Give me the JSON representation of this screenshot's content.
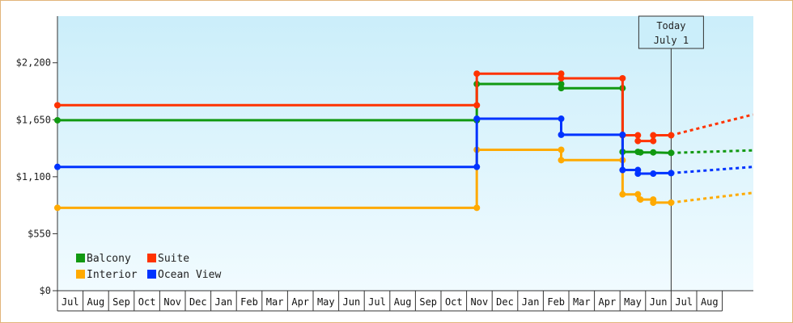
{
  "chart_data": {
    "type": "line",
    "title": "",
    "xlabel": "",
    "ylabel": "",
    "ylim": [
      0,
      2650
    ],
    "y_ticks": [
      "$0",
      "$550",
      "$1,100",
      "$1,650",
      "$2,200"
    ],
    "y_tick_values": [
      0,
      550,
      1100,
      1650,
      2200
    ],
    "months": [
      "Jul",
      "Aug",
      "Sep",
      "Oct",
      "Nov",
      "Dec",
      "Jan",
      "Feb",
      "Mar",
      "Apr",
      "May",
      "Jun",
      "Jul",
      "Aug",
      "Sep",
      "Oct",
      "Nov",
      "Dec",
      "Jan",
      "Feb",
      "Mar",
      "Apr",
      "May",
      "Jun",
      "Jul",
      "Aug"
    ],
    "x_unit": "months since start of first Jul",
    "xlim": [
      0,
      27.2
    ],
    "today": {
      "line1": "Today",
      "line2": "July 1",
      "x": 24.0
    },
    "grid": false,
    "legend_position": "bottom-left",
    "series": [
      {
        "name": "Balcony",
        "color": "#119911",
        "points": [
          [
            0,
            1645
          ],
          [
            16.4,
            1645
          ],
          [
            16.4,
            1995
          ],
          [
            19.7,
            1995
          ],
          [
            19.7,
            1955
          ],
          [
            22.1,
            1955
          ],
          [
            22.1,
            1340
          ],
          [
            22.7,
            1340
          ],
          [
            22.7,
            1335
          ],
          [
            23.3,
            1335
          ],
          [
            23.3,
            1335
          ],
          [
            24.0,
            1330
          ]
        ],
        "markers": [
          [
            0,
            1645
          ],
          [
            16.4,
            1645
          ],
          [
            16.4,
            1995
          ],
          [
            19.7,
            1995
          ],
          [
            19.7,
            1955
          ],
          [
            22.1,
            1955
          ],
          [
            22.1,
            1340
          ],
          [
            22.7,
            1340
          ],
          [
            22.8,
            1335
          ],
          [
            23.3,
            1335
          ],
          [
            24.0,
            1330
          ]
        ],
        "forecast": [
          [
            24.0,
            1330
          ],
          [
            27.2,
            1355
          ]
        ]
      },
      {
        "name": "Suite",
        "color": "#ff3300",
        "points": [
          [
            0,
            1790
          ],
          [
            16.4,
            1790
          ],
          [
            16.4,
            2095
          ],
          [
            19.7,
            2095
          ],
          [
            19.7,
            2050
          ],
          [
            22.1,
            2050
          ],
          [
            22.1,
            1500
          ],
          [
            22.7,
            1500
          ],
          [
            22.7,
            1445
          ],
          [
            23.3,
            1445
          ],
          [
            23.3,
            1500
          ],
          [
            24.0,
            1500
          ]
        ],
        "markers": [
          [
            0,
            1790
          ],
          [
            16.4,
            1790
          ],
          [
            16.4,
            2095
          ],
          [
            19.7,
            2095
          ],
          [
            19.7,
            2050
          ],
          [
            22.1,
            2050
          ],
          [
            22.1,
            1500
          ],
          [
            22.7,
            1500
          ],
          [
            22.7,
            1445
          ],
          [
            23.3,
            1445
          ],
          [
            23.3,
            1500
          ],
          [
            24.0,
            1500
          ]
        ],
        "forecast": [
          [
            24.0,
            1500
          ],
          [
            27.2,
            1700
          ]
        ]
      },
      {
        "name": "Interior",
        "color": "#ffaa00",
        "points": [
          [
            0,
            800
          ],
          [
            16.4,
            800
          ],
          [
            16.4,
            1360
          ],
          [
            19.7,
            1360
          ],
          [
            19.7,
            1260
          ],
          [
            22.1,
            1260
          ],
          [
            22.1,
            930
          ],
          [
            22.7,
            930
          ],
          [
            22.7,
            880
          ],
          [
            23.3,
            880
          ],
          [
            23.3,
            850
          ],
          [
            24.0,
            850
          ]
        ],
        "markers": [
          [
            0,
            800
          ],
          [
            16.4,
            800
          ],
          [
            16.4,
            1360
          ],
          [
            19.7,
            1360
          ],
          [
            19.7,
            1260
          ],
          [
            22.1,
            1260
          ],
          [
            22.1,
            930
          ],
          [
            22.7,
            930
          ],
          [
            22.8,
            880
          ],
          [
            23.3,
            880
          ],
          [
            23.3,
            850
          ],
          [
            24.0,
            850
          ]
        ],
        "forecast": [
          [
            24.0,
            850
          ],
          [
            27.2,
            945
          ]
        ]
      },
      {
        "name": "Ocean View",
        "color": "#0033ff",
        "points": [
          [
            0,
            1195
          ],
          [
            16.4,
            1195
          ],
          [
            16.4,
            1660
          ],
          [
            19.7,
            1660
          ],
          [
            19.7,
            1505
          ],
          [
            22.1,
            1505
          ],
          [
            22.1,
            1165
          ],
          [
            22.7,
            1165
          ],
          [
            22.7,
            1130
          ],
          [
            23.3,
            1130
          ],
          [
            23.3,
            1135
          ],
          [
            24.0,
            1135
          ]
        ],
        "markers": [
          [
            0,
            1195
          ],
          [
            16.4,
            1195
          ],
          [
            16.4,
            1660
          ],
          [
            19.7,
            1660
          ],
          [
            19.7,
            1505
          ],
          [
            22.1,
            1505
          ],
          [
            22.1,
            1165
          ],
          [
            22.7,
            1165
          ],
          [
            22.7,
            1130
          ],
          [
            23.3,
            1130
          ],
          [
            24.0,
            1135
          ]
        ],
        "forecast": [
          [
            24.0,
            1135
          ],
          [
            27.2,
            1195
          ]
        ]
      }
    ]
  }
}
